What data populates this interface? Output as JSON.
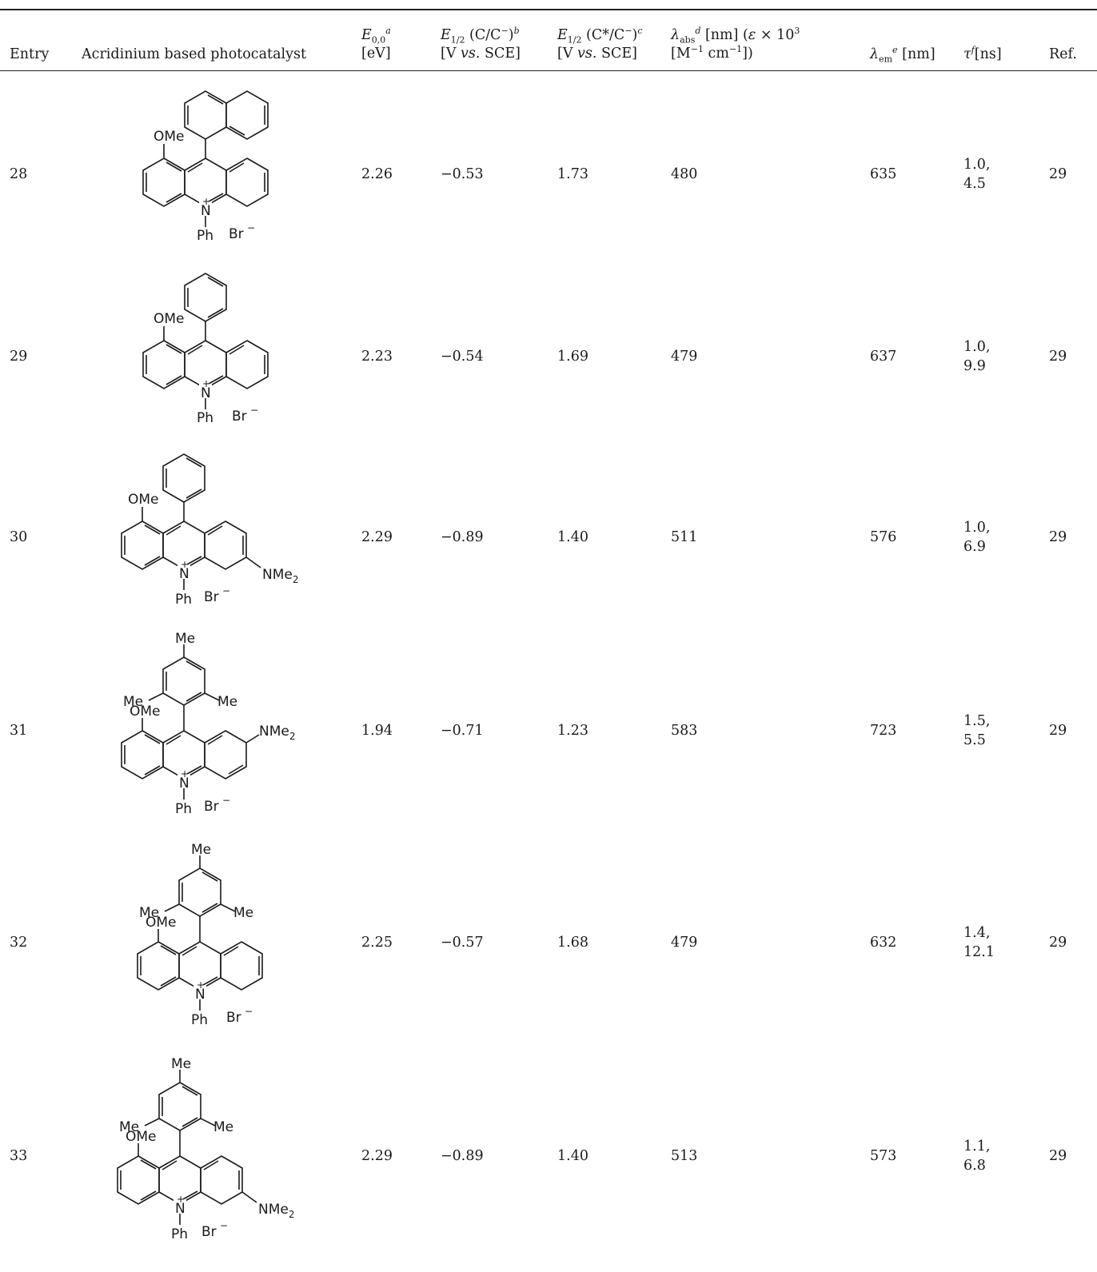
{
  "table": {
    "headers": {
      "entry": "Entry",
      "catalyst": "Acridinium based photocatalyst",
      "e00_var": "E",
      "e00_sub": "0,0",
      "e00_sup": "a",
      "e00_unit": "[eV]",
      "ered_var": "E",
      "ered_sub": "1/2",
      "ered_text": " (C/C",
      "ered_minus": "−",
      "ered_close": ")",
      "ered_sup": "b",
      "ered_unit_a": "[V ",
      "ered_unit_vs": "vs.",
      "ered_unit_b": " SCE]",
      "eox_var": "E",
      "eox_sub": "1/2",
      "eox_text": " (C*/C",
      "eox_minus": "−",
      "eox_close": ")",
      "eox_sup": "c",
      "eox_unit_a": "[V ",
      "eox_unit_vs": "vs.",
      "eox_unit_b": " SCE]",
      "abs_var": "λ",
      "abs_sub": "abs",
      "abs_sup": "d",
      "abs_text": " [nm] (",
      "abs_eps": "ε",
      "abs_text2": " × 10",
      "abs_exp": "3",
      "abs_line2a": "[M",
      "abs_line2_exp1": "−1",
      "abs_line2b": " cm",
      "abs_line2_exp2": "−1",
      "abs_line2c": "])",
      "em_var": "λ",
      "em_sub": "em",
      "em_sup": "e",
      "em_unit": " [nm]",
      "tau_var": "τ",
      "tau_sup": "f",
      "tau_unit": "[ns]",
      "ref": "Ref."
    },
    "rows": [
      {
        "entry": "28",
        "e00": "2.26",
        "ered": "−0.53",
        "eox": "1.73",
        "abs": "480",
        "em": "635",
        "tau1": "1.0,",
        "tau2": "4.5",
        "ref": "29",
        "labels": {
          "ome": "OMe",
          "n": "N",
          "plus": "+",
          "ph": "Ph",
          "br": "Br",
          "brminus": "−"
        }
      },
      {
        "entry": "29",
        "e00": "2.23",
        "ered": "−0.54",
        "eox": "1.69",
        "abs": "479",
        "em": "637",
        "tau1": "1.0,",
        "tau2": "9.9",
        "ref": "29",
        "labels": {
          "ome": "OMe",
          "n": "N",
          "plus": "+",
          "ph": "Ph",
          "br": "Br",
          "brminus": "−"
        }
      },
      {
        "entry": "30",
        "e00": "2.29",
        "ered": "−0.89",
        "eox": "1.40",
        "abs": "511",
        "em": "576",
        "tau1": "1.0,",
        "tau2": "6.9",
        "ref": "29",
        "labels": {
          "ome": "OMe",
          "n": "N",
          "plus": "+",
          "ph": "Ph",
          "br": "Br",
          "brminus": "−",
          "nme": "NMe",
          "nme_sub": "2"
        }
      },
      {
        "entry": "31",
        "e00": "1.94",
        "ered": "−0.71",
        "eox": "1.23",
        "abs": "583",
        "em": "723",
        "tau1": "1.5,",
        "tau2": "5.5",
        "ref": "29",
        "labels": {
          "ome": "OMe",
          "n": "N",
          "plus": "+",
          "ph": "Ph",
          "br": "Br",
          "brminus": "−",
          "nme": "NMe",
          "nme_sub": "2",
          "me": "Me"
        }
      },
      {
        "entry": "32",
        "e00": "2.25",
        "ered": "−0.57",
        "eox": "1.68",
        "abs": "479",
        "em": "632",
        "tau1": "1.4,",
        "tau2": "12.1",
        "ref": "29",
        "labels": {
          "ome": "OMe",
          "n": "N",
          "plus": "+",
          "ph": "Ph",
          "br": "Br",
          "brminus": "−",
          "me": "Me"
        }
      },
      {
        "entry": "33",
        "e00": "2.29",
        "ered": "−0.89",
        "eox": "1.40",
        "abs": "513",
        "em": "573",
        "tau1": "1.1,",
        "tau2": "6.8",
        "ref": "29",
        "labels": {
          "ome": "OMe",
          "n": "N",
          "plus": "+",
          "ph": "Ph",
          "br": "Br",
          "brminus": "−",
          "nme": "NMe",
          "nme_sub": "2",
          "me": "Me"
        }
      }
    ]
  }
}
